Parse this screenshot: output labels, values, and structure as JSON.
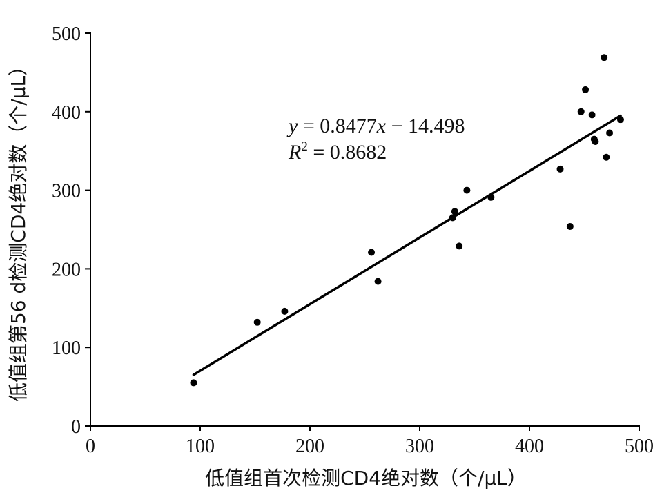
{
  "chart_data": {
    "type": "scatter",
    "xlabel": "低值组首次检测CD4绝对数（个/μL）",
    "ylabel": "低值组第56 d检测CD4绝对数（个/μL）",
    "xlim": [
      0,
      500
    ],
    "ylim": [
      0,
      500
    ],
    "x_ticks": [
      "0",
      "100",
      "200",
      "300",
      "400",
      "500"
    ],
    "y_ticks": [
      "0",
      "100",
      "200",
      "300",
      "400",
      "500"
    ],
    "grid": false,
    "points": [
      {
        "x": 94,
        "y": 55
      },
      {
        "x": 152,
        "y": 132
      },
      {
        "x": 177,
        "y": 146
      },
      {
        "x": 256,
        "y": 221
      },
      {
        "x": 262,
        "y": 184
      },
      {
        "x": 330,
        "y": 265
      },
      {
        "x": 332,
        "y": 273
      },
      {
        "x": 336,
        "y": 229
      },
      {
        "x": 343,
        "y": 300
      },
      {
        "x": 365,
        "y": 291
      },
      {
        "x": 428,
        "y": 327
      },
      {
        "x": 437,
        "y": 254
      },
      {
        "x": 447,
        "y": 400
      },
      {
        "x": 451,
        "y": 428
      },
      {
        "x": 457,
        "y": 396
      },
      {
        "x": 459,
        "y": 365
      },
      {
        "x": 460,
        "y": 362
      },
      {
        "x": 468,
        "y": 469
      },
      {
        "x": 470,
        "y": 342
      },
      {
        "x": 473,
        "y": 373
      },
      {
        "x": 483,
        "y": 390
      }
    ],
    "trendline": {
      "slope": 0.8477,
      "intercept": -14.498,
      "x_range": [
        94,
        483
      ]
    },
    "annotation": {
      "y_var": "y",
      "eq_rest": " = 0.8477",
      "x_var": "x",
      "eq_tail": " − 14.498",
      "r_var": "R",
      "r_sup": "2",
      "r_rest": " = 0.8682"
    }
  }
}
